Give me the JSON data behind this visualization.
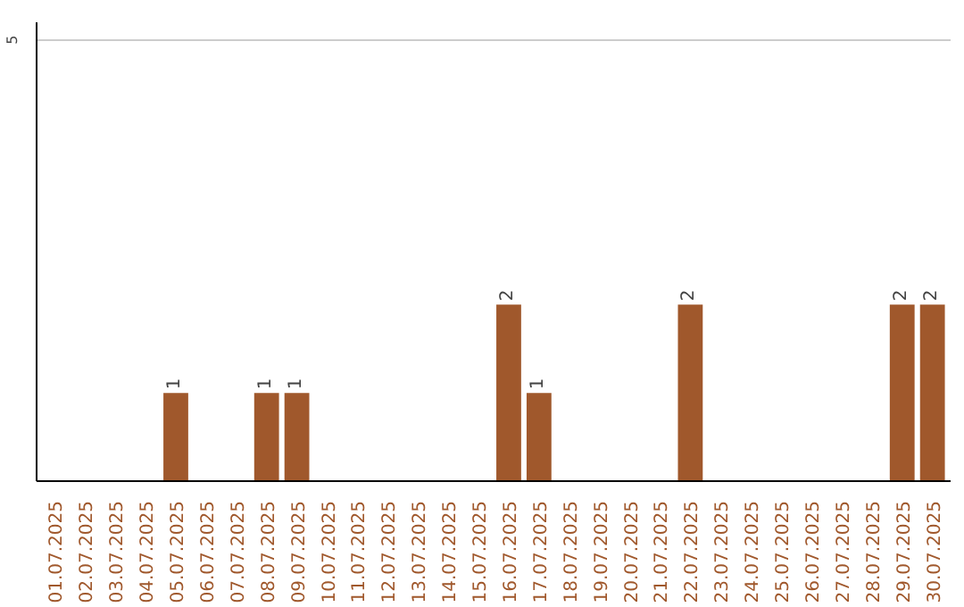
{
  "chart_data": {
    "type": "bar",
    "categories": [
      "01.07.2025",
      "02.07.2025",
      "03.07.2025",
      "04.07.2025",
      "05.07.2025",
      "06.07.2025",
      "07.07.2025",
      "08.07.2025",
      "09.07.2025",
      "10.07.2025",
      "11.07.2025",
      "12.07.2025",
      "13.07.2025",
      "14.07.2025",
      "15.07.2025",
      "16.07.2025",
      "17.07.2025",
      "18.07.2025",
      "19.07.2025",
      "20.07.2025",
      "21.07.2025",
      "22.07.2025",
      "23.07.2025",
      "24.07.2025",
      "25.07.2025",
      "26.07.2025",
      "27.07.2025",
      "28.07.2025",
      "29.07.2025",
      "30.07.2025"
    ],
    "values": [
      0,
      0,
      0,
      0,
      1,
      0,
      0,
      1,
      1,
      0,
      0,
      0,
      0,
      0,
      0,
      2,
      1,
      0,
      0,
      0,
      0,
      2,
      0,
      0,
      0,
      0,
      0,
      0,
      2,
      2
    ],
    "value_labels": [
      null,
      null,
      null,
      null,
      "1",
      null,
      null,
      "1",
      "1",
      null,
      null,
      null,
      null,
      null,
      null,
      "2",
      "1",
      null,
      null,
      null,
      null,
      "2",
      null,
      null,
      null,
      null,
      null,
      null,
      "2",
      "2"
    ],
    "color": "#a0582c",
    "ylim": [
      0,
      5.2
    ],
    "yticks": [
      5
    ],
    "grid": "y"
  }
}
